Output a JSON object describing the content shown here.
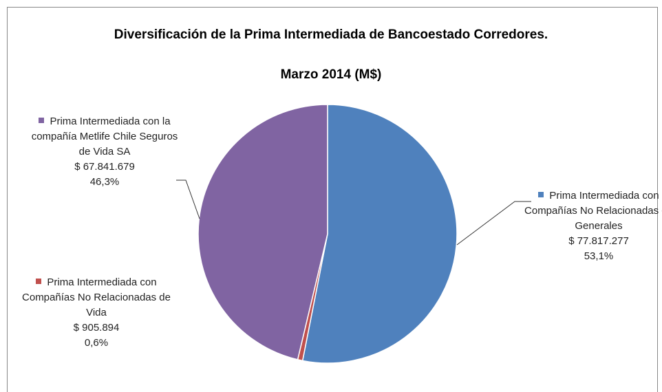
{
  "chart_data": {
    "type": "pie",
    "title": "Diversificación de la Prima Intermediada de Bancoestado Corredores.",
    "subtitle": "Marzo 2014 (M$)",
    "categories": [
      "Prima Intermediada con Compañías No Relacionadas de Generales",
      "Prima Intermediada con Compañías No Relacionadas de Vida",
      "Prima Intermediada con la compañía Metlife Chile Seguros de Vida SA"
    ],
    "values": [
      77817277,
      905894,
      67841679
    ],
    "value_labels": [
      "$ 77.817.277",
      "$ 905.894",
      "$ 67.841.679"
    ],
    "percent_labels": [
      "53,1%",
      "0,6%",
      "46,3%"
    ],
    "colors": [
      "#4f81bd",
      "#c0504d",
      "#8064a2"
    ]
  }
}
